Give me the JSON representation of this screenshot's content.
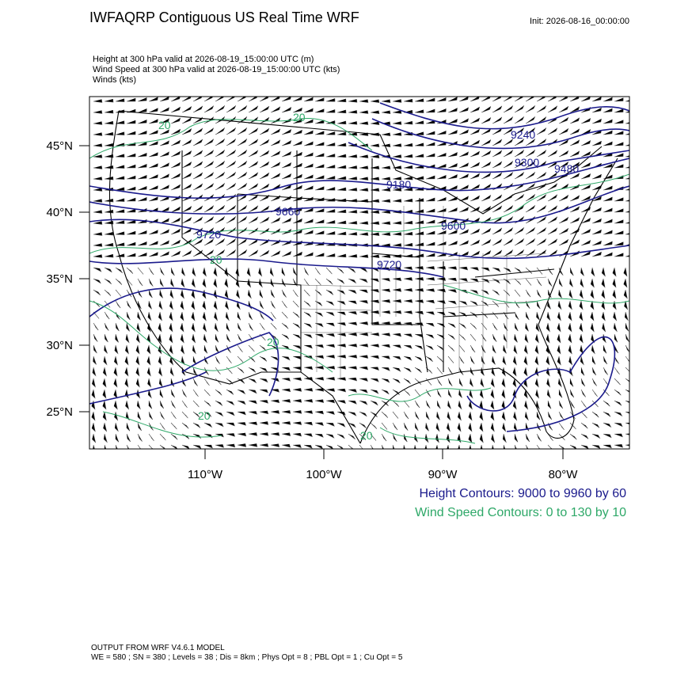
{
  "header": {
    "title": "IWFAQRP Contiguous US Real Time WRF",
    "init": "Init: 2026-08-16_00:00:00",
    "fields": [
      "Height at 300 hPa valid at 2026-08-19_15:00:00 UTC   (m)",
      "Wind Speed at 300 hPa valid at 2026-08-19_15:00:00 UTC   (kts)",
      "Winds   (kts)"
    ]
  },
  "map": {
    "lat_labels": [
      "45°N",
      "40°N",
      "35°N",
      "30°N",
      "25°N"
    ],
    "lon_labels": [
      "110°W",
      "100°W",
      "90°W",
      "80°W"
    ],
    "contour_labels": [
      "9240",
      "9300",
      "9480",
      "9180",
      "9660",
      "9720",
      "9600",
      "9720",
      "20",
      "20",
      "20",
      "20",
      "20",
      "20"
    ]
  },
  "legend": {
    "height": "Height Contours: 9000 to 9960 by 60",
    "wind": "Wind Speed Contours: 0 to 130 by 10"
  },
  "footer": [
    "OUTPUT FROM WRF V4.6.1 MODEL",
    "WE = 580 ; SN = 380 ; Levels = 38 ; Dis = 8km ; Phys Opt = 8 ; PBL Opt = 1 ; Cu Opt = 5"
  ]
}
